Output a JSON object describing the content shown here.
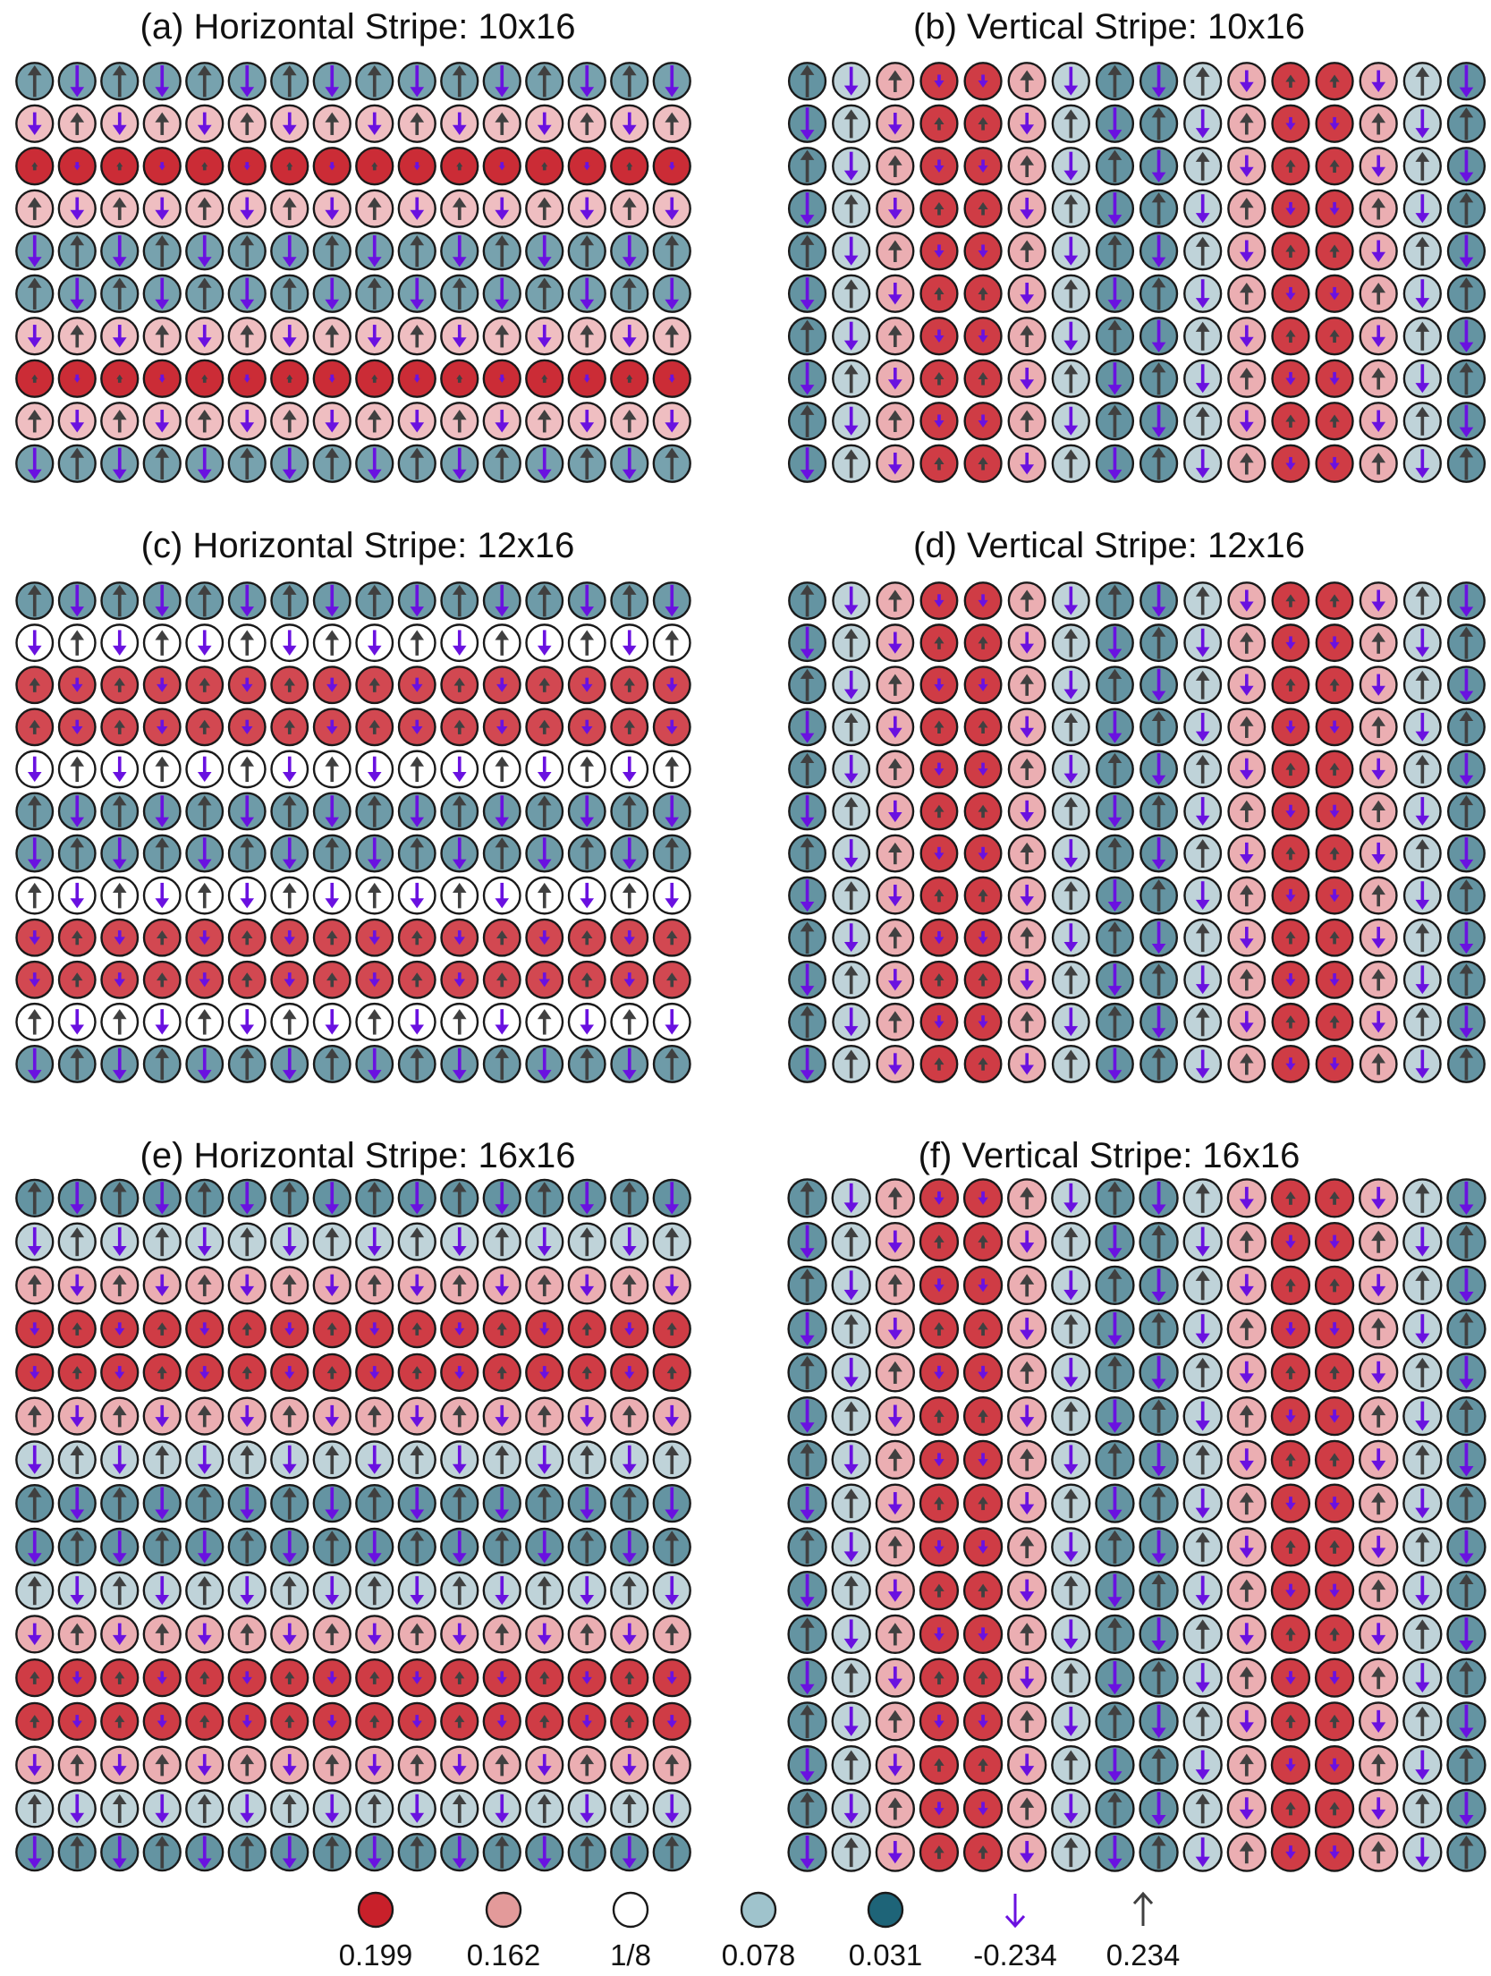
{
  "figure": {
    "colors": {
      "low": "#1e6478",
      "mid": "#ffffff",
      "high": "#c8202a",
      "arrow_down": "#6a11e0",
      "arrow_up": "#404040",
      "ring": "#1a1a1a"
    }
  },
  "chart_data": [
    {
      "type": "heatmap",
      "title": "(a) Horizontal Stripe: 10x16",
      "pattern": "horizontal",
      "rows": 10,
      "cols": 16,
      "density_range": [
        0.031,
        0.199
      ],
      "spin_range": [
        -0.234,
        0.234
      ],
      "description_of_values": "site density (fill color) and spin (arrow length/direction)"
    },
    {
      "type": "heatmap",
      "title": "(b) Vertical Stripe: 10x16",
      "pattern": "vertical",
      "rows": 10,
      "cols": 16,
      "density_range": [
        0.031,
        0.199
      ],
      "spin_range": [
        -0.234,
        0.234
      ]
    },
    {
      "type": "heatmap",
      "title": "(c) Horizontal Stripe: 12x16",
      "pattern": "horizontal",
      "rows": 12,
      "cols": 16,
      "density_range": [
        0.031,
        0.199
      ],
      "spin_range": [
        -0.234,
        0.234
      ]
    },
    {
      "type": "heatmap",
      "title": "(d) Vertical Stripe: 12x16",
      "pattern": "vertical",
      "rows": 12,
      "cols": 16,
      "density_range": [
        0.031,
        0.199
      ],
      "spin_range": [
        -0.234,
        0.234
      ]
    },
    {
      "type": "heatmap",
      "title": "(e) Horizontal Stripe: 16x16",
      "pattern": "horizontal",
      "rows": 16,
      "cols": 16,
      "density_range": [
        0.031,
        0.199
      ],
      "spin_range": [
        -0.234,
        0.234
      ]
    },
    {
      "type": "heatmap",
      "title": "(f) Vertical Stripe: 16x16",
      "pattern": "vertical",
      "rows": 16,
      "cols": 16,
      "density_range": [
        0.031,
        0.199
      ],
      "spin_range": [
        -0.234,
        0.234
      ]
    }
  ],
  "legend": {
    "entries": [
      {
        "kind": "density",
        "value": 0.199,
        "label": "0.199",
        "color": "#c8202a"
      },
      {
        "kind": "density",
        "value": 0.162,
        "label": "0.162",
        "color": "#e39a9a"
      },
      {
        "kind": "density",
        "value": 0.125,
        "label": "1/8",
        "color": "#ffffff"
      },
      {
        "kind": "density",
        "value": 0.078,
        "label": "0.078",
        "color": "#9fc3cc"
      },
      {
        "kind": "density",
        "value": 0.031,
        "label": "0.031",
        "color": "#1e6478"
      },
      {
        "kind": "spin",
        "value": -0.234,
        "label": "-0.234",
        "color": "#6a11e0"
      },
      {
        "kind": "spin",
        "value": 0.234,
        "label": "0.234",
        "color": "#404040"
      }
    ]
  }
}
